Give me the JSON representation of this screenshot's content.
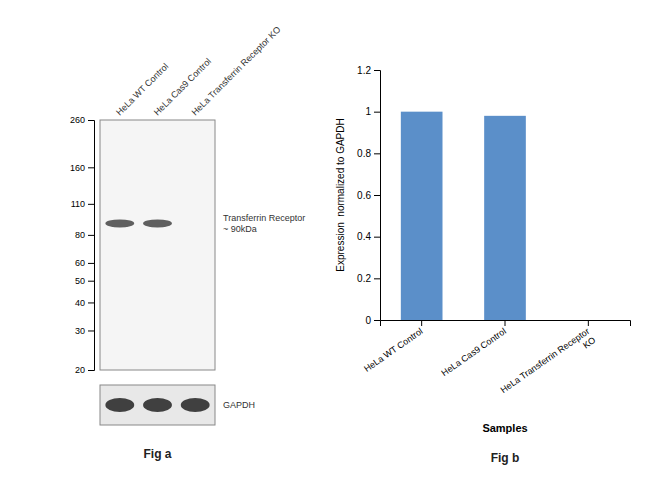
{
  "chart_data": [
    {
      "type": "blot",
      "title": "Fig a",
      "categories": [
        "HeLa WT Control",
        "HeLa Cas9 Control",
        "HeLa Transferrin Receptor KO"
      ],
      "values": [
        90,
        90,
        null
      ],
      "ylim": [
        20,
        260
      ],
      "yticks": [
        260,
        160,
        110,
        80,
        60,
        50,
        40,
        30,
        20
      ],
      "log": "y",
      "annotations": [
        "Transferrin Receptor\n~ 90kDa",
        "GAPDH"
      ]
    },
    {
      "type": "bar",
      "title": "Fig b",
      "categories": [
        "HeLa WT Control",
        "HeLa Cas9 Control",
        "HeLa Transferrin Receptor\nKO"
      ],
      "values": [
        1.0,
        0.98,
        0.0
      ],
      "color": "#5b8fc9",
      "xlabel": "Samples",
      "ylabel": "Expression  normalized to GAPDH",
      "ylim": [
        0,
        1.2
      ],
      "yticks": [
        0,
        0.2,
        0.4,
        0.6,
        0.8,
        1.0,
        1.2
      ]
    }
  ]
}
